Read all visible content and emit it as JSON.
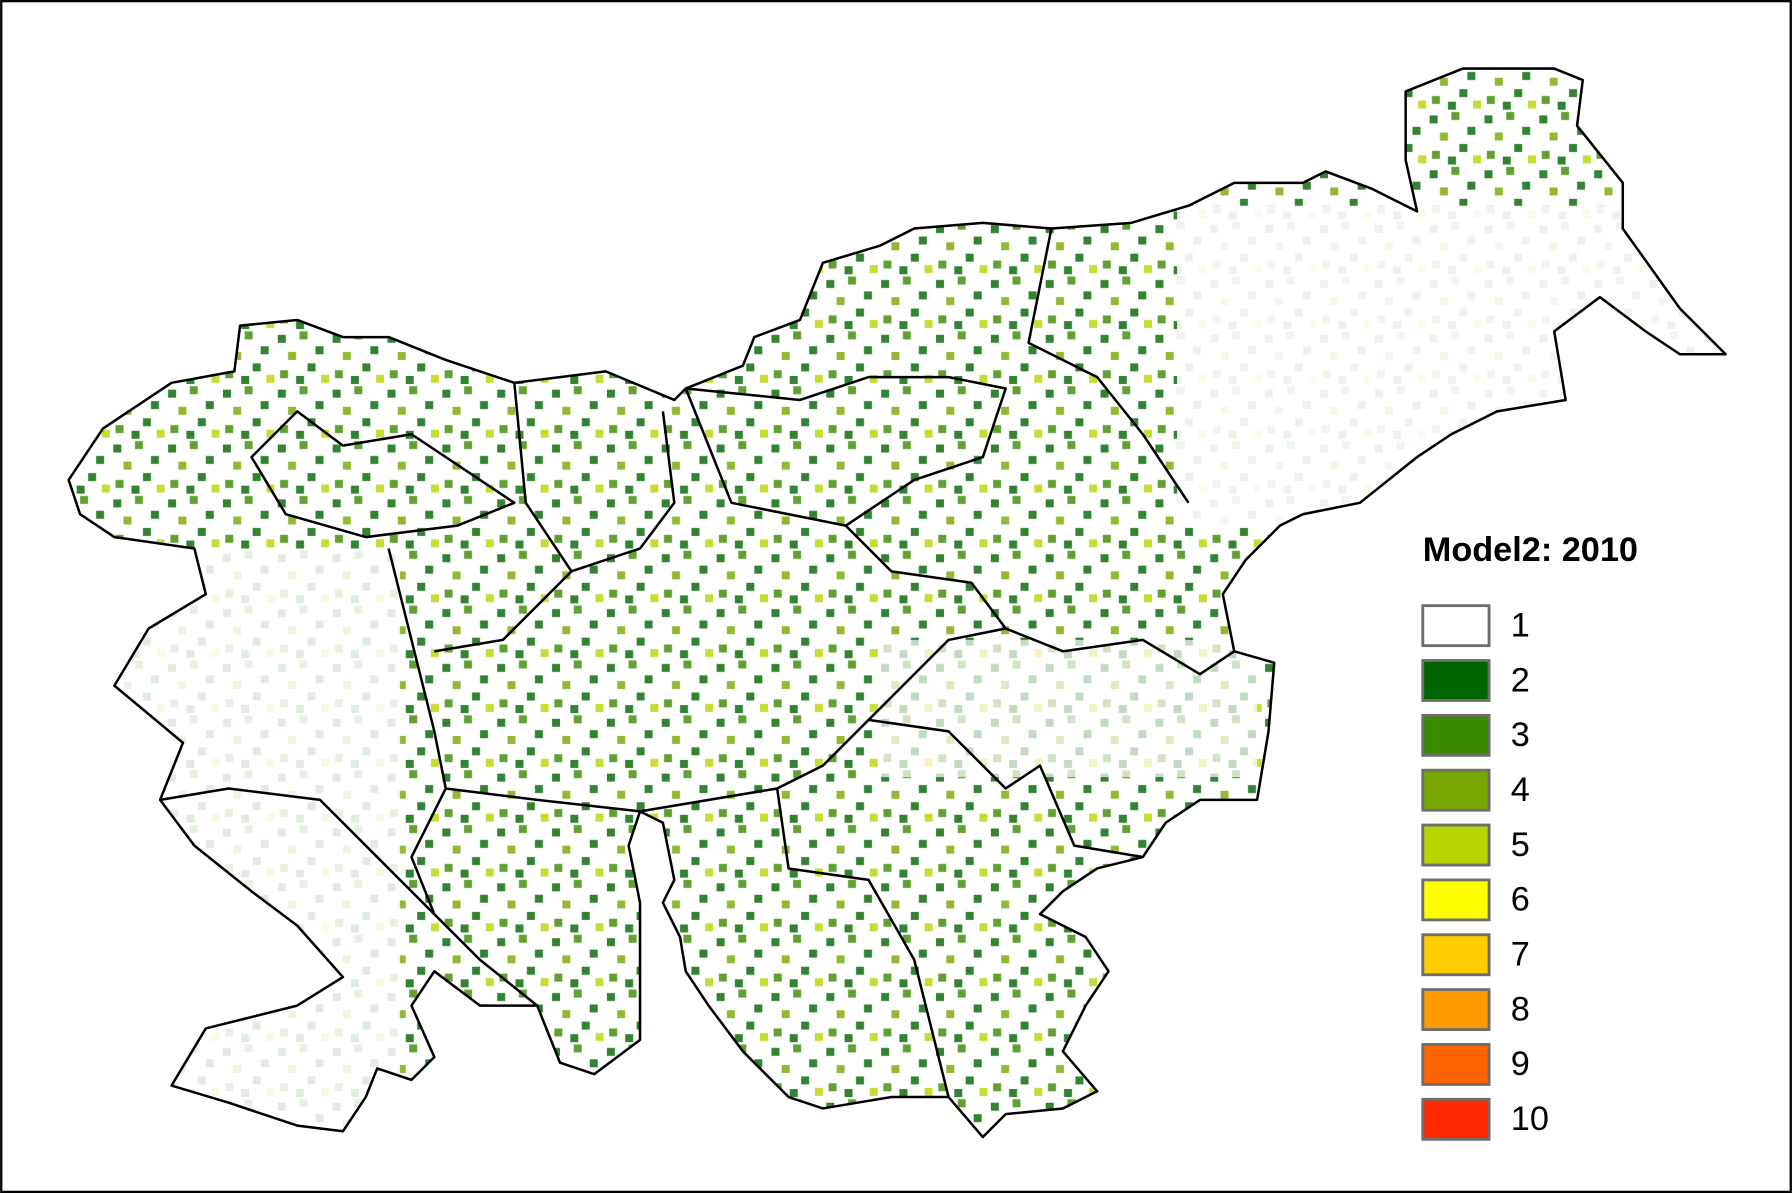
{
  "legend": {
    "title": "Model2: 2010",
    "items": [
      {
        "label": 1,
        "color": "#ffffff"
      },
      {
        "label": 2,
        "color": "#006400"
      },
      {
        "label": 3,
        "color": "#3a8a00"
      },
      {
        "label": 4,
        "color": "#78a800"
      },
      {
        "label": 5,
        "color": "#b8d400"
      },
      {
        "label": 6,
        "color": "#ffff00"
      },
      {
        "label": 7,
        "color": "#ffcc00"
      },
      {
        "label": 8,
        "color": "#ff9a00"
      },
      {
        "label": 9,
        "color": "#ff6400"
      },
      {
        "label": 10,
        "color": "#ff2800"
      }
    ]
  }
}
